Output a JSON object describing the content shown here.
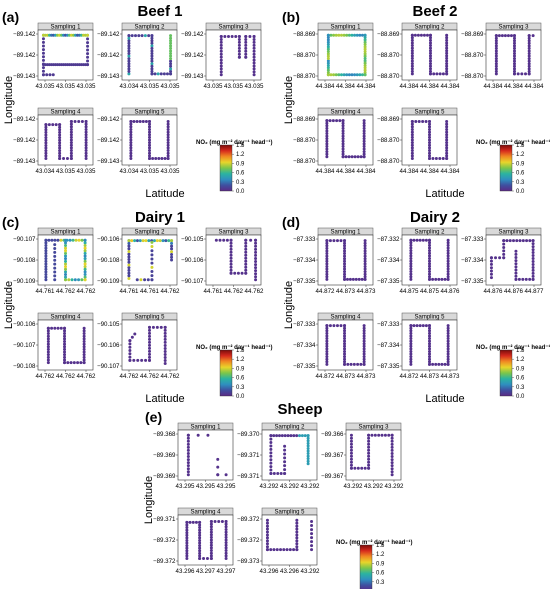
{
  "colormap": {
    "title": "NO₂ (mg m⁻² day⁻¹ head⁻¹)",
    "ticks": [
      "1.5",
      "1.2",
      "0.9",
      "0.6",
      "0.3",
      "0.0"
    ],
    "range": [
      0,
      1.5
    ],
    "stops": [
      "#5b2a86",
      "#3f4fa0",
      "#2f8fbf",
      "#2bb3a1",
      "#7cc64a",
      "#e8d52a",
      "#f08a23",
      "#d62a1d",
      "#7a0c0c"
    ]
  },
  "axis_labels": {
    "x": "Latitude",
    "y": "Longitude"
  },
  "chart_data": [
    {
      "id": "beef1",
      "label": "(a)",
      "title": "Beef 1",
      "type": "scatter",
      "panels": [
        {
          "title": "Sampling 1",
          "xticks": [
            "43.035",
            "43.035",
            "43.035"
          ],
          "yticks": [
            "−89.142",
            "−89.142",
            "−89.143"
          ],
          "shape": "beef1_1"
        },
        {
          "title": "Sampling 2",
          "xticks": [
            "43.034",
            "43.035",
            "43.035"
          ],
          "yticks": [
            "−89.142",
            "−89.142",
            "−89.143"
          ],
          "shape": "beef1_2"
        },
        {
          "title": "Sampling 3",
          "xticks": [
            "43.035",
            "43.035",
            "43.035"
          ],
          "yticks": [
            "−89.142",
            "−89.142",
            "−89.143"
          ],
          "shape": "beef1_3"
        },
        {
          "title": "Sampling 4",
          "xticks": [
            "43.034",
            "43.035",
            "43.035"
          ],
          "yticks": [
            "−89.142",
            "−89.142",
            "−89.143"
          ],
          "shape": "beef1_4"
        },
        {
          "title": "Sampling 5",
          "xticks": [
            "43.034",
            "43.035",
            "43.035"
          ],
          "yticks": [
            "−89.142",
            "−89.142",
            "−89.143"
          ],
          "shape": "beef1_5"
        }
      ]
    },
    {
      "id": "beef2",
      "label": "(b)",
      "title": "Beef 2",
      "type": "scatter",
      "panels": [
        {
          "title": "Sampling 1",
          "xticks": [
            "44.384",
            "44.384",
            "44.384"
          ],
          "yticks": [
            "−88.869",
            "−88.870",
            "−88.870"
          ],
          "shape": "beef2_1"
        },
        {
          "title": "Sampling 2",
          "xticks": [
            "44.384",
            "44.384",
            "44.384"
          ],
          "yticks": [
            "−88.869",
            "−88.870",
            "−88.870"
          ],
          "shape": "beef2_2"
        },
        {
          "title": "Sampling 3",
          "xticks": [
            "44.384",
            "44.384",
            "44.384"
          ],
          "yticks": [
            "−88.869",
            "−88.870",
            "−88.870"
          ],
          "shape": "beef2_3"
        },
        {
          "title": "Sampling 4",
          "xticks": [
            "44.384",
            "44.384",
            "44.384"
          ],
          "yticks": [
            "−88.869",
            "−88.870",
            "−88.870"
          ],
          "shape": "beef2_4"
        },
        {
          "title": "Sampling 5",
          "xticks": [
            "44.384",
            "44.384",
            "44.384"
          ],
          "yticks": [
            "−88.869",
            "−88.870",
            "−88.870"
          ],
          "shape": "beef2_5"
        }
      ]
    },
    {
      "id": "dairy1",
      "label": "(c)",
      "title": "Dairy 1",
      "type": "scatter",
      "panels": [
        {
          "title": "Sampling 1",
          "xticks": [
            "44.761",
            "44.762",
            "44.762"
          ],
          "yticks": [
            "−90.107",
            "−90.108",
            "−90.109"
          ],
          "shape": "dairy1_1"
        },
        {
          "title": "Sampling 2",
          "xticks": [
            "44.761",
            "44.761",
            "44.762"
          ],
          "yticks": [
            "−90.106",
            "−90.108",
            "−90.109"
          ],
          "shape": "dairy1_2"
        },
        {
          "title": "Sampling 3",
          "xticks": [
            "44.761",
            "44.762",
            "44.762"
          ],
          "yticks": [
            "−90.105",
            "−90.106",
            "−90.107"
          ],
          "shape": "dairy1_3"
        },
        {
          "title": "Sampling 4",
          "xticks": [
            "44.762",
            "44.762",
            "44.762"
          ],
          "yticks": [
            "−90.106",
            "−90.107",
            "−90.108"
          ],
          "shape": "dairy1_4"
        },
        {
          "title": "Sampling 5",
          "xticks": [
            "44.762",
            "44.762",
            "44.762"
          ],
          "yticks": [
            "−90.105",
            "−90.106",
            "−90.107"
          ],
          "shape": "dairy1_5"
        }
      ]
    },
    {
      "id": "dairy2",
      "label": "(d)",
      "title": "Dairy 2",
      "type": "scatter",
      "panels": [
        {
          "title": "Sampling 1",
          "xticks": [
            "44.872",
            "44.873",
            "44.873"
          ],
          "yticks": [
            "−87.333",
            "−87.334",
            "−87.335"
          ],
          "shape": "dairy2_1"
        },
        {
          "title": "Sampling 2",
          "xticks": [
            "44.875",
            "44.875",
            "44.876"
          ],
          "yticks": [
            "−87.332",
            "−87.334",
            "−87.335"
          ],
          "shape": "dairy2_2"
        },
        {
          "title": "Sampling 3",
          "xticks": [
            "44.876",
            "44.876",
            "44.877"
          ],
          "yticks": [
            "−87.333",
            "−87.334",
            "−87.335"
          ],
          "shape": "dairy2_3"
        },
        {
          "title": "Sampling 4",
          "xticks": [
            "44.872",
            "44.873",
            "44.873"
          ],
          "yticks": [
            "−87.333",
            "−87.334",
            "−87.335"
          ],
          "shape": "dairy2_4"
        },
        {
          "title": "Sampling 5",
          "xticks": [
            "44.872",
            "44.873",
            "44.873"
          ],
          "yticks": [
            "−87.333",
            "−87.334",
            "−87.335"
          ],
          "shape": "dairy2_5"
        }
      ]
    },
    {
      "id": "sheep",
      "label": "(e)",
      "title": "Sheep",
      "type": "scatter",
      "panels": [
        {
          "title": "Sampling 1",
          "xticks": [
            "43.295",
            "43.295",
            "43.295"
          ],
          "yticks": [
            "−89.368",
            "−89.369",
            "−89.369"
          ],
          "shape": "sheep_1"
        },
        {
          "title": "Sampling 2",
          "xticks": [
            "43.292",
            "43.292",
            "43.292"
          ],
          "yticks": [
            "−89.370",
            "−89.371",
            "−89.371"
          ],
          "shape": "sheep_2"
        },
        {
          "title": "Sampling 3",
          "xticks": [
            "43.292",
            "43.292",
            "43.292"
          ],
          "yticks": [
            "−89.366",
            "−89.367",
            "−89.367"
          ],
          "shape": "sheep_3"
        },
        {
          "title": "Sampling 4",
          "xticks": [
            "43.296",
            "43.297",
            "43.297"
          ],
          "yticks": [
            "−89.371",
            "−89.372",
            "−89.372"
          ],
          "shape": "sheep_4"
        },
        {
          "title": "Sampling 5",
          "xticks": [
            "43.296",
            "43.296",
            "43.292"
          ],
          "yticks": [
            "−89.372",
            "−89.372",
            "−89.373"
          ],
          "shape": "sheep_5"
        }
      ]
    }
  ]
}
